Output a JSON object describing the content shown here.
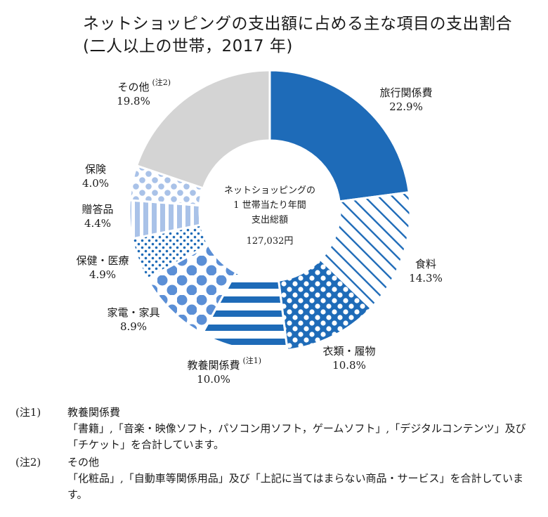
{
  "title_line1": "ネットショッピングの支出額に占める主な項目の支出割合",
  "title_line2": "(二人以上の世帯，2017 年)",
  "center": {
    "line1": "ネットショッピングの",
    "line2": "1 世帯当たり年間",
    "line3": "支出総額",
    "total": "127,032円"
  },
  "chart_data": {
    "type": "pie",
    "donut": true,
    "start": "12 o'clock, clockwise",
    "categories": [
      "旅行関係費",
      "食料",
      "衣類・履物",
      "教養関係費",
      "家電・家具",
      "保健・医療",
      "贈答品",
      "保険",
      "その他"
    ],
    "values": [
      22.9,
      14.3,
      10.8,
      10.0,
      8.9,
      4.9,
      4.4,
      4.0,
      19.8
    ],
    "value_labels": [
      "22.9%",
      "14.3%",
      "10.8%",
      "10.0%",
      "8.9%",
      "4.9%",
      "4.4%",
      "4.0%",
      "19.8%"
    ],
    "label_notes": [
      "",
      "",
      "",
      "(注1)",
      "",
      "",
      "",
      "",
      "(注2)"
    ],
    "patterns": [
      "solid-blue",
      "diagonal-stripes",
      "dense-dots",
      "horizontal-stripes",
      "large-dots",
      "small-dots",
      "vertical-stripes",
      "medium-dots",
      "solid-gray"
    ],
    "colors": {
      "blue": "#1e6bb8",
      "light_blue": "#a9c2e8",
      "dot_blue": "#5b8fd6",
      "gray": "#d4d4d4",
      "outline": "#ffffff"
    }
  },
  "notes": [
    {
      "mark": "(注1)",
      "heading": "教養関係費",
      "body": "「書籍」,「音楽・映像ソフト，パソコン用ソフト，ゲームソフト」,「デジタルコンテンツ」及び「チケット」を合計しています。"
    },
    {
      "mark": "(注2)",
      "heading": "その他",
      "body": "「化粧品」,「自動車等関係用品」及び「上記に当てはまらない商品・サービス」を合計しています。"
    }
  ]
}
